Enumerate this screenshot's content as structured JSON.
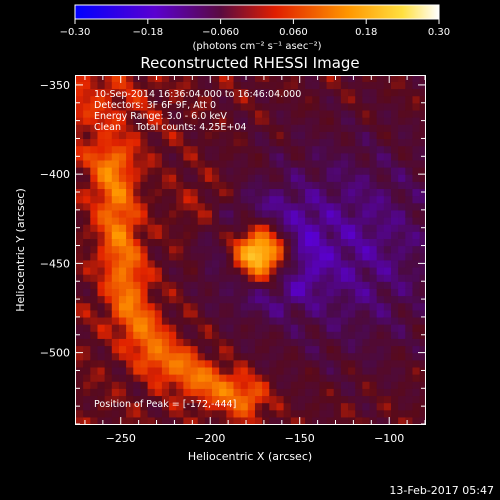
{
  "chart_data": {
    "type": "heatmap",
    "title": "Reconstructed RHESSI Image",
    "xlabel": "Heliocentric X (arcsec)",
    "ylabel": "Heliocentric Y (arcsec)",
    "xlim": [
      -275,
      -80
    ],
    "ylim": [
      -540,
      -345
    ],
    "xticks": [
      -250,
      -200,
      -150,
      -100
    ],
    "xtick_labels": [
      "−250",
      "−200",
      "−150",
      "−100"
    ],
    "yticks": [
      -350,
      -400,
      -450,
      -500
    ],
    "ytick_labels": [
      "−350",
      "−400",
      "−450",
      "−500"
    ],
    "colorbar": {
      "range": [
        -0.3,
        0.3
      ],
      "ticks": [
        -0.3,
        -0.18,
        -0.06,
        0.06,
        0.18,
        0.3
      ],
      "tick_labels": [
        "−0.30",
        "−0.18",
        "−0.060",
        "0.060",
        "0.18",
        "0.30"
      ],
      "unit_label": "(photons cm⁻² s⁻¹ asec⁻²)",
      "colors": [
        "#0000ff",
        "#6a00c8",
        "#5a0a3a",
        "#ff3c00",
        "#ffb400",
        "#ffffff"
      ]
    },
    "annotations": [
      "10-Sep-2014 16:36:04.000 to 16:46:04.000",
      "Detectors: 3F 6F 9F, Att 0",
      "Energy Range: 3.0 - 6.0 keV",
      "Clean     Total counts: 4.25E+04"
    ],
    "peak_label": "Position of Peak = [-172,-444]",
    "peak": {
      "x": -172,
      "y": -444,
      "value": 0.3
    },
    "arc_feature": {
      "points": [
        [
          -255,
          -395
        ],
        [
          -250,
          -440
        ],
        [
          -245,
          -475
        ],
        [
          -230,
          -500
        ],
        [
          -205,
          -515
        ],
        [
          -180,
          -525
        ]
      ],
      "value": 0.13
    },
    "background_negative_region": {
      "center": [
        -125,
        -440
      ],
      "value": -0.12
    }
  },
  "footer_timestamp": "13-Feb-2017 05:47"
}
